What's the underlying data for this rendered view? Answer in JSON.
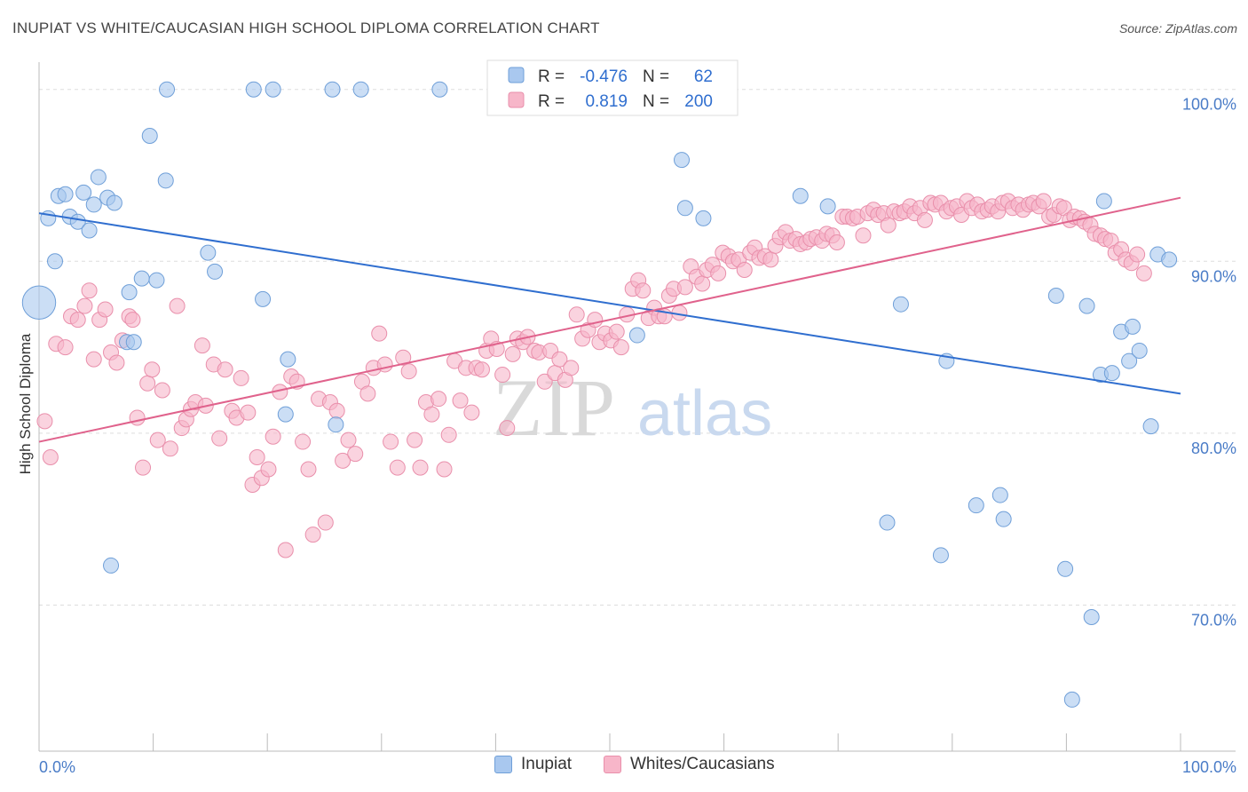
{
  "title": "INUPIAT VS WHITE/CAUCASIAN HIGH SCHOOL DIPLOMA CORRELATION CHART",
  "source": "Source: ZipAtlas.com",
  "watermark": {
    "zip": "ZIP",
    "atlas": "atlas"
  },
  "colors": {
    "blue_fill": "#a9c8ef",
    "blue_stroke": "#6f9fd8",
    "blue_line": "#2f6ecf",
    "pink_fill": "#f7b6c9",
    "pink_stroke": "#e98fab",
    "pink_line": "#e0628c",
    "tick_label": "#4a7cc7",
    "grid": "#dddddd"
  },
  "legend": {
    "rows": [
      {
        "r_label": "R =",
        "r_value": "-0.476",
        "n_label": "N =",
        "n_value": "62"
      },
      {
        "r_label": "R =",
        "r_value": "0.819",
        "n_label": "N =",
        "n_value": "200"
      }
    ]
  },
  "bottom_legend": [
    "Inupiat",
    "Whites/Caucasians"
  ],
  "chart_data": {
    "type": "scatter",
    "ylabel": "High School Diploma",
    "xlabel": "",
    "xlim": [
      0,
      100
    ],
    "ylim": [
      61.5,
      102
    ],
    "x_tick_labels": [
      {
        "value": 0,
        "label": "0.0%"
      },
      {
        "value": 100,
        "label": "100.0%"
      }
    ],
    "y_ticks": [
      {
        "value": 100,
        "label": "100.0%"
      },
      {
        "value": 90,
        "label": "90.0%"
      },
      {
        "value": 80,
        "label": "80.0%"
      },
      {
        "value": 70,
        "label": "70.0%"
      }
    ],
    "series": [
      {
        "name": "Inupiat",
        "trend": {
          "x": [
            0,
            100
          ],
          "y": [
            92.8,
            82.3
          ]
        },
        "points": [
          [
            0,
            87.6,
            2.2
          ],
          [
            0.8,
            92.5,
            1
          ],
          [
            1.4,
            90,
            1
          ],
          [
            1.7,
            93.8,
            1
          ],
          [
            2.3,
            93.9,
            1
          ],
          [
            2.7,
            92.6,
            1
          ],
          [
            3.4,
            92.3,
            1
          ],
          [
            3.9,
            94,
            1
          ],
          [
            4.4,
            91.8,
            1
          ],
          [
            4.8,
            93.3,
            1
          ],
          [
            5.2,
            94.9,
            1
          ],
          [
            6,
            93.7,
            1
          ],
          [
            6.6,
            93.4,
            1
          ],
          [
            6.3,
            72.3,
            1
          ],
          [
            7.7,
            85.3,
            1
          ],
          [
            7.9,
            88.2,
            1
          ],
          [
            8.3,
            85.3,
            1
          ],
          [
            9,
            89,
            1
          ],
          [
            9.7,
            97.3,
            1
          ],
          [
            10.3,
            88.9,
            1
          ],
          [
            11.1,
            94.7,
            1
          ],
          [
            11.2,
            100,
            1
          ],
          [
            14.8,
            90.5,
            1
          ],
          [
            15.4,
            89.4,
            1
          ],
          [
            18.8,
            100,
            1
          ],
          [
            20.5,
            100,
            1
          ],
          [
            19.6,
            87.8,
            1
          ],
          [
            21.6,
            81.1,
            1
          ],
          [
            21.8,
            84.3,
            1
          ],
          [
            25.7,
            100,
            1
          ],
          [
            26,
            80.5,
            1
          ],
          [
            28.2,
            100,
            1
          ],
          [
            35.1,
            100,
            1
          ],
          [
            51.2,
            100,
            1
          ],
          [
            52.4,
            85.7,
            1
          ],
          [
            56.3,
            95.9,
            1
          ],
          [
            56.6,
            93.1,
            1
          ],
          [
            58.2,
            92.5,
            1
          ],
          [
            66.7,
            93.8,
            1
          ],
          [
            69.1,
            93.2,
            1
          ],
          [
            74.3,
            74.8,
            1
          ],
          [
            75.5,
            87.5,
            1
          ],
          [
            79,
            72.9,
            1
          ],
          [
            79.5,
            84.2,
            1
          ],
          [
            82.1,
            75.8,
            1
          ],
          [
            84.2,
            76.4,
            1
          ],
          [
            84.5,
            75,
            1
          ],
          [
            89.1,
            88,
            1
          ],
          [
            89.9,
            72.1,
            1
          ],
          [
            90.5,
            64.5,
            1
          ],
          [
            91.8,
            87.4,
            1
          ],
          [
            92.2,
            69.3,
            1
          ],
          [
            93,
            83.4,
            1
          ],
          [
            93.3,
            93.5,
            1
          ],
          [
            94,
            83.5,
            1
          ],
          [
            94.8,
            85.9,
            1
          ],
          [
            95.5,
            84.2,
            1
          ],
          [
            95.8,
            86.2,
            1
          ],
          [
            96.4,
            84.8,
            1
          ],
          [
            97.4,
            80.4,
            1
          ],
          [
            98,
            90.4,
            1
          ],
          [
            99,
            90.1,
            1
          ]
        ]
      },
      {
        "name": "Whites/Caucasians",
        "trend": {
          "x": [
            0,
            100
          ],
          "y": [
            79.5,
            93.7
          ]
        },
        "points": [
          [
            0.5,
            80.7
          ],
          [
            1,
            78.6
          ],
          [
            1.5,
            85.2
          ],
          [
            2.3,
            85
          ],
          [
            2.8,
            86.8
          ],
          [
            3.4,
            86.6
          ],
          [
            4,
            87.4
          ],
          [
            4.4,
            88.3
          ],
          [
            4.8,
            84.3
          ],
          [
            5.3,
            86.6
          ],
          [
            5.8,
            87.2
          ],
          [
            6.3,
            84.7
          ],
          [
            6.8,
            84.1
          ],
          [
            7.3,
            85.4
          ],
          [
            7.9,
            86.8
          ],
          [
            8.2,
            86.6
          ],
          [
            8.6,
            80.9
          ],
          [
            9.1,
            78
          ],
          [
            9.5,
            82.9
          ],
          [
            9.9,
            83.7
          ],
          [
            10.4,
            79.6
          ],
          [
            10.8,
            82.5
          ],
          [
            11.5,
            79.1
          ],
          [
            12.1,
            87.4
          ],
          [
            12.5,
            80.3
          ],
          [
            12.9,
            80.8
          ],
          [
            13.3,
            81.4
          ],
          [
            13.7,
            81.8
          ],
          [
            14.3,
            85.1
          ],
          [
            14.6,
            81.6
          ],
          [
            15.3,
            84
          ],
          [
            15.8,
            79.7
          ],
          [
            16.3,
            83.7
          ],
          [
            16.9,
            81.3
          ],
          [
            17.3,
            80.9
          ],
          [
            17.7,
            83.2
          ],
          [
            18.3,
            81.2
          ],
          [
            18.7,
            77
          ],
          [
            19.1,
            78.6
          ],
          [
            19.5,
            77.4
          ],
          [
            20.1,
            77.9
          ],
          [
            20.5,
            79.8
          ],
          [
            21.1,
            82.4
          ],
          [
            21.6,
            73.2
          ],
          [
            22.1,
            83.3
          ],
          [
            22.6,
            83
          ],
          [
            23.1,
            79.5
          ],
          [
            23.6,
            77.9
          ],
          [
            24,
            74.1
          ],
          [
            24.5,
            82
          ],
          [
            25.1,
            74.8
          ],
          [
            25.5,
            81.8
          ],
          [
            26.1,
            81.3
          ],
          [
            26.6,
            78.4
          ],
          [
            27.1,
            79.6
          ],
          [
            27.7,
            78.8
          ],
          [
            28.3,
            83
          ],
          [
            28.8,
            82.3
          ],
          [
            29.3,
            83.8
          ],
          [
            29.8,
            85.8
          ],
          [
            30.3,
            84
          ],
          [
            30.8,
            79.5
          ],
          [
            31.4,
            78
          ],
          [
            31.9,
            84.4
          ],
          [
            32.4,
            83.6
          ],
          [
            32.9,
            79.6
          ],
          [
            33.4,
            78
          ],
          [
            33.9,
            81.8
          ],
          [
            34.4,
            81.1
          ],
          [
            35,
            82
          ],
          [
            35.5,
            77.9
          ],
          [
            35.9,
            79.9
          ],
          [
            36.4,
            84.2
          ],
          [
            36.9,
            81.9
          ],
          [
            37.4,
            83.8
          ],
          [
            37.9,
            81.2
          ],
          [
            38.3,
            83.8
          ],
          [
            38.8,
            83.7
          ],
          [
            39.2,
            84.8
          ],
          [
            39.6,
            85.5
          ],
          [
            40.1,
            84.9
          ],
          [
            40.6,
            83.4
          ],
          [
            41,
            80.3
          ],
          [
            41.5,
            84.6
          ],
          [
            41.9,
            85.5
          ],
          [
            42.4,
            85.3
          ],
          [
            42.8,
            85.6
          ],
          [
            43.4,
            84.8
          ],
          [
            43.8,
            84.7
          ],
          [
            44.3,
            83
          ],
          [
            44.8,
            84.8
          ],
          [
            45.2,
            83.5
          ],
          [
            45.6,
            84.3
          ],
          [
            46.1,
            83.1
          ],
          [
            46.6,
            83.8
          ],
          [
            47.1,
            86.9
          ],
          [
            47.6,
            85.5
          ],
          [
            48.1,
            86
          ],
          [
            48.7,
            86.6
          ],
          [
            49.1,
            85.3
          ],
          [
            49.6,
            85.8
          ],
          [
            50.1,
            85.4
          ],
          [
            50.6,
            85.9
          ],
          [
            51,
            85
          ],
          [
            51.5,
            86.9
          ],
          [
            52,
            88.4
          ],
          [
            52.5,
            88.9
          ],
          [
            52.9,
            88.3
          ],
          [
            53.4,
            86.7
          ],
          [
            53.9,
            87.3
          ],
          [
            54.3,
            86.8
          ],
          [
            54.8,
            86.8
          ],
          [
            55.2,
            88
          ],
          [
            55.6,
            88.4
          ],
          [
            56.1,
            87
          ],
          [
            56.6,
            88.5
          ],
          [
            57.1,
            89.7
          ],
          [
            57.6,
            89.1
          ],
          [
            58.1,
            88.7
          ],
          [
            58.5,
            89.5
          ],
          [
            59,
            89.8
          ],
          [
            59.5,
            89.3
          ],
          [
            59.9,
            90.5
          ],
          [
            60.4,
            90.3
          ],
          [
            60.8,
            90
          ],
          [
            61.3,
            90.1
          ],
          [
            61.8,
            89.5
          ],
          [
            62.3,
            90.5
          ],
          [
            62.7,
            90.8
          ],
          [
            63.1,
            90.2
          ],
          [
            63.6,
            90.3
          ],
          [
            64.1,
            90.1
          ],
          [
            64.5,
            90.9
          ],
          [
            64.9,
            91.4
          ],
          [
            65.4,
            91.7
          ],
          [
            65.8,
            91.2
          ],
          [
            66.3,
            91.3
          ],
          [
            66.7,
            91
          ],
          [
            67.2,
            91.1
          ],
          [
            67.6,
            91.3
          ],
          [
            68.1,
            91.4
          ],
          [
            68.6,
            91.2
          ],
          [
            69,
            91.6
          ],
          [
            69.5,
            91.5
          ],
          [
            69.9,
            91.1
          ],
          [
            70.4,
            92.6
          ],
          [
            70.8,
            92.6
          ],
          [
            71.3,
            92.5
          ],
          [
            71.7,
            92.6
          ],
          [
            72.2,
            91.5
          ],
          [
            72.6,
            92.8
          ],
          [
            73.1,
            93
          ],
          [
            73.5,
            92.7
          ],
          [
            74,
            92.8
          ],
          [
            74.4,
            92.1
          ],
          [
            74.9,
            92.9
          ],
          [
            75.4,
            92.8
          ],
          [
            75.8,
            92.9
          ],
          [
            76.3,
            93.2
          ],
          [
            76.7,
            92.8
          ],
          [
            77.2,
            93.1
          ],
          [
            77.6,
            92.4
          ],
          [
            78.1,
            93.4
          ],
          [
            78.5,
            93.3
          ],
          [
            79,
            93.4
          ],
          [
            79.5,
            92.9
          ],
          [
            79.9,
            93.1
          ],
          [
            80.4,
            93.2
          ],
          [
            80.8,
            92.7
          ],
          [
            81.3,
            93.5
          ],
          [
            81.7,
            93.1
          ],
          [
            82.2,
            93.3
          ],
          [
            82.6,
            92.9
          ],
          [
            83.1,
            93
          ],
          [
            83.5,
            93.2
          ],
          [
            84,
            92.9
          ],
          [
            84.4,
            93.4
          ],
          [
            84.9,
            93.5
          ],
          [
            85.3,
            93.1
          ],
          [
            85.8,
            93.3
          ],
          [
            86.2,
            93
          ],
          [
            86.7,
            93.3
          ],
          [
            87.1,
            93.4
          ],
          [
            87.6,
            93.2
          ],
          [
            88,
            93.5
          ],
          [
            88.5,
            92.6
          ],
          [
            88.9,
            92.7
          ],
          [
            89.4,
            93.2
          ],
          [
            89.8,
            93.1
          ],
          [
            90.3,
            92.4
          ],
          [
            90.7,
            92.6
          ],
          [
            91.2,
            92.5
          ],
          [
            91.6,
            92.3
          ],
          [
            92.1,
            92.1
          ],
          [
            92.5,
            91.6
          ],
          [
            93,
            91.5
          ],
          [
            93.4,
            91.3
          ],
          [
            93.9,
            91.2
          ],
          [
            94.3,
            90.5
          ],
          [
            94.8,
            90.7
          ],
          [
            95.2,
            90.1
          ],
          [
            95.7,
            89.9
          ],
          [
            96.2,
            90.4
          ],
          [
            96.8,
            89.3
          ]
        ]
      }
    ],
    "grid": true,
    "legend_position": "top-center"
  }
}
